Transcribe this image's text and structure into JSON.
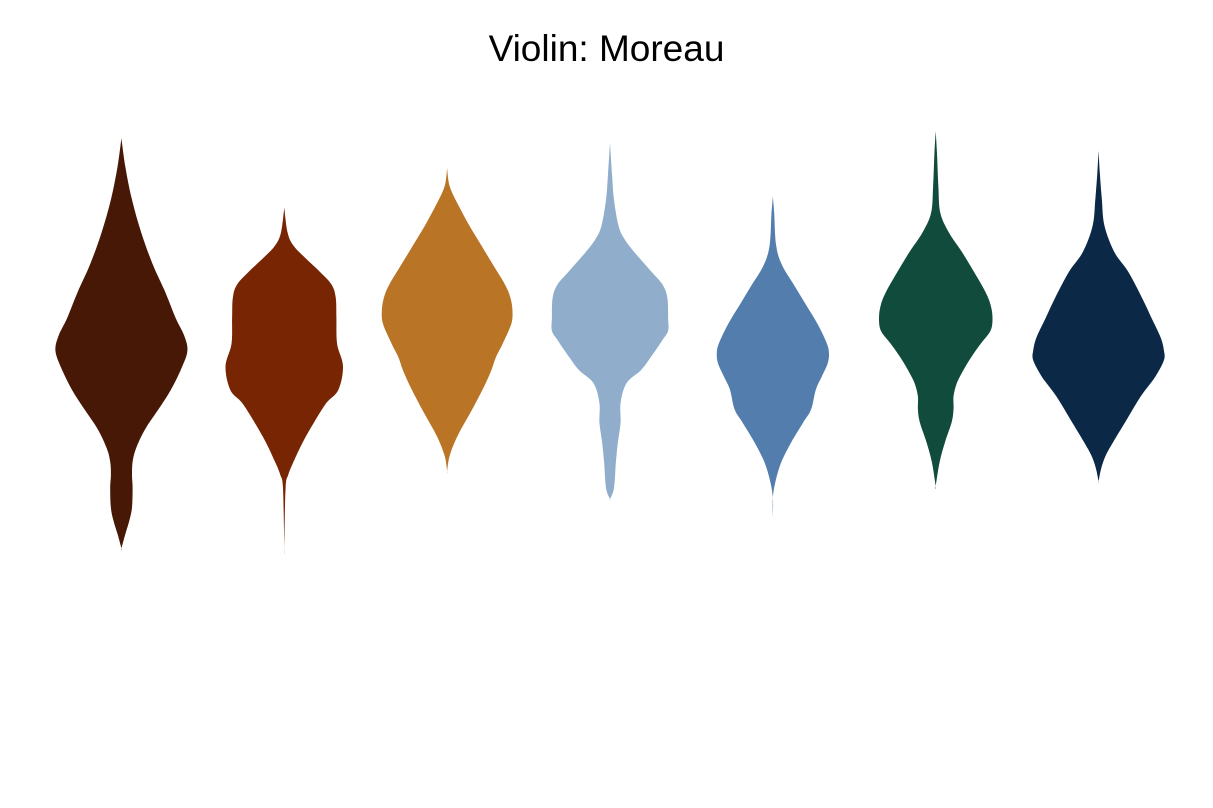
{
  "chart_data": {
    "type": "violin",
    "title": "Violin: Moreau",
    "xlabel": "",
    "ylabel": "",
    "grid": false,
    "axes_visible": false,
    "legend": "none",
    "ylim": [
      0,
      100
    ],
    "series": [
      {
        "color": "#461805",
        "profile": [
          [
            93.4,
            0.0
          ],
          [
            89.0,
            0.06
          ],
          [
            84.0,
            0.16
          ],
          [
            79.0,
            0.3
          ],
          [
            74.0,
            0.48
          ],
          [
            70.0,
            0.66
          ],
          [
            66.0,
            0.82
          ],
          [
            63.3,
            0.95
          ],
          [
            61.0,
            1.0
          ],
          [
            58.5,
            0.92
          ],
          [
            55.0,
            0.75
          ],
          [
            52.0,
            0.56
          ],
          [
            49.0,
            0.36
          ],
          [
            46.0,
            0.22
          ],
          [
            44.0,
            0.17
          ],
          [
            42.0,
            0.16
          ],
          [
            40.0,
            0.17
          ],
          [
            37.0,
            0.16
          ],
          [
            35.0,
            0.12
          ],
          [
            33.0,
            0.06
          ],
          [
            30.8,
            0.0
          ]
        ]
      },
      {
        "color": "#782504",
        "profile": [
          [
            82.8,
            0.0
          ],
          [
            79.0,
            0.05
          ],
          [
            77.0,
            0.14
          ],
          [
            75.0,
            0.33
          ],
          [
            73.0,
            0.54
          ],
          [
            71.0,
            0.72
          ],
          [
            69.0,
            0.78
          ],
          [
            66.0,
            0.79
          ],
          [
            62.0,
            0.8
          ],
          [
            58.6,
            0.89
          ],
          [
            55.0,
            0.82
          ],
          [
            53.0,
            0.64
          ],
          [
            50.0,
            0.45
          ],
          [
            47.0,
            0.28
          ],
          [
            44.0,
            0.14
          ],
          [
            42.0,
            0.06
          ],
          [
            40.0,
            0.02
          ],
          [
            31.0,
            0.0
          ]
        ]
      },
      {
        "color": "#B97425",
        "profile": [
          [
            88.8,
            0.0
          ],
          [
            86.0,
            0.04
          ],
          [
            83.0,
            0.18
          ],
          [
            80.0,
            0.34
          ],
          [
            77.0,
            0.52
          ],
          [
            74.0,
            0.7
          ],
          [
            71.0,
            0.88
          ],
          [
            69.0,
            0.96
          ],
          [
            67.0,
            0.99
          ],
          [
            65.0,
            0.97
          ],
          [
            62.0,
            0.84
          ],
          [
            60.0,
            0.74
          ],
          [
            58.0,
            0.67
          ],
          [
            55.5,
            0.56
          ],
          [
            52.0,
            0.38
          ],
          [
            48.0,
            0.16
          ],
          [
            45.0,
            0.04
          ],
          [
            42.6,
            0.0
          ]
        ]
      },
      {
        "color": "#90AECB",
        "profile": [
          [
            92.7,
            0.0
          ],
          [
            88.0,
            0.03
          ],
          [
            84.0,
            0.06
          ],
          [
            80.0,
            0.13
          ],
          [
            78.0,
            0.22
          ],
          [
            76.0,
            0.37
          ],
          [
            73.0,
            0.63
          ],
          [
            71.0,
            0.8
          ],
          [
            69.0,
            0.87
          ],
          [
            66.0,
            0.88
          ],
          [
            64.0,
            0.88
          ],
          [
            62.5,
            0.79
          ],
          [
            60.0,
            0.62
          ],
          [
            58.0,
            0.47
          ],
          [
            56.0,
            0.25
          ],
          [
            53.0,
            0.16
          ],
          [
            50.0,
            0.16
          ],
          [
            47.0,
            0.12
          ],
          [
            44.0,
            0.09
          ],
          [
            40.0,
            0.06
          ],
          [
            38.3,
            0.0
          ]
        ]
      },
      {
        "color": "#537DAC",
        "profile": [
          [
            84.5,
            0.0
          ],
          [
            82.0,
            0.02
          ],
          [
            77.0,
            0.05
          ],
          [
            74.0,
            0.14
          ],
          [
            71.0,
            0.32
          ],
          [
            68.0,
            0.5
          ],
          [
            65.0,
            0.68
          ],
          [
            62.0,
            0.82
          ],
          [
            60.5,
            0.85
          ],
          [
            59.0,
            0.83
          ],
          [
            57.0,
            0.74
          ],
          [
            55.0,
            0.65
          ],
          [
            52.0,
            0.58
          ],
          [
            50.0,
            0.46
          ],
          [
            47.0,
            0.28
          ],
          [
            44.0,
            0.13
          ],
          [
            41.0,
            0.04
          ],
          [
            38.5,
            0.0
          ],
          [
            35.4,
            0.0
          ]
        ]
      },
      {
        "color": "#114B3B",
        "profile": [
          [
            94.5,
            0.0
          ],
          [
            91.0,
            0.02
          ],
          [
            86.0,
            0.04
          ],
          [
            82.0,
            0.07
          ],
          [
            79.0,
            0.2
          ],
          [
            76.0,
            0.4
          ],
          [
            73.0,
            0.58
          ],
          [
            70.0,
            0.75
          ],
          [
            68.0,
            0.83
          ],
          [
            66.0,
            0.86
          ],
          [
            64.0,
            0.83
          ],
          [
            62.0,
            0.68
          ],
          [
            60.0,
            0.54
          ],
          [
            58.0,
            0.42
          ],
          [
            56.0,
            0.32
          ],
          [
            54.0,
            0.27
          ],
          [
            52.0,
            0.27
          ],
          [
            50.0,
            0.24
          ],
          [
            47.0,
            0.14
          ],
          [
            44.0,
            0.06
          ],
          [
            40.3,
            0.0
          ]
        ]
      },
      {
        "color": "#0B2846",
        "profile": [
          [
            91.5,
            0.0
          ],
          [
            88.0,
            0.02
          ],
          [
            84.0,
            0.05
          ],
          [
            80.0,
            0.09
          ],
          [
            76.0,
            0.24
          ],
          [
            73.0,
            0.45
          ],
          [
            69.0,
            0.66
          ],
          [
            66.0,
            0.8
          ],
          [
            63.0,
            0.94
          ],
          [
            61.0,
            0.99
          ],
          [
            59.5,
            0.99
          ],
          [
            57.0,
            0.86
          ],
          [
            54.0,
            0.64
          ],
          [
            50.0,
            0.4
          ],
          [
            47.0,
            0.22
          ],
          [
            45.0,
            0.11
          ],
          [
            43.0,
            0.04
          ],
          [
            41.0,
            0.0
          ]
        ]
      }
    ]
  }
}
